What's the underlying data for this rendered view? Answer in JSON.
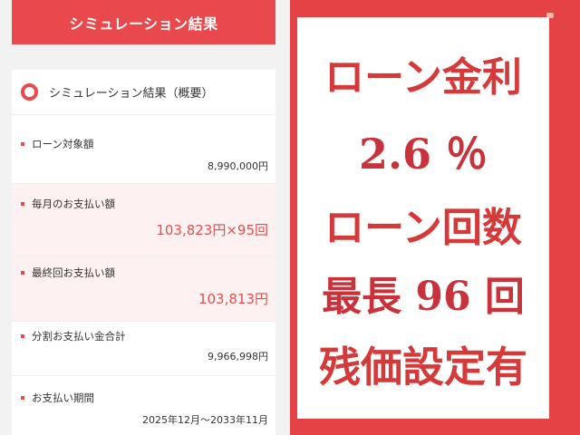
{
  "header": {
    "title": "シミュレーション結果"
  },
  "summary": {
    "label": "シミュレーション結果（概要）"
  },
  "rows": [
    {
      "label": "ローン対象額",
      "value": "8,990,000円"
    },
    {
      "label": "毎月のお支払い額",
      "value": "103,823円×95回"
    },
    {
      "label": "最終回お支払い額",
      "value": "103,813円"
    },
    {
      "label": "分割お支払い金合計",
      "value": "9,966,998円"
    },
    {
      "label": "お支払い期間",
      "value": "2025年12月～2033年11月"
    }
  ],
  "banner": {
    "line1": "ローン金利",
    "line2": "2.6 ％",
    "line3": "ローン回数",
    "line4": "最長 96 回",
    "line5": "残価設定有"
  },
  "colors": {
    "accent": "#e9484d",
    "banner_bg": "#e54245",
    "banner_text": "#c8323a"
  }
}
